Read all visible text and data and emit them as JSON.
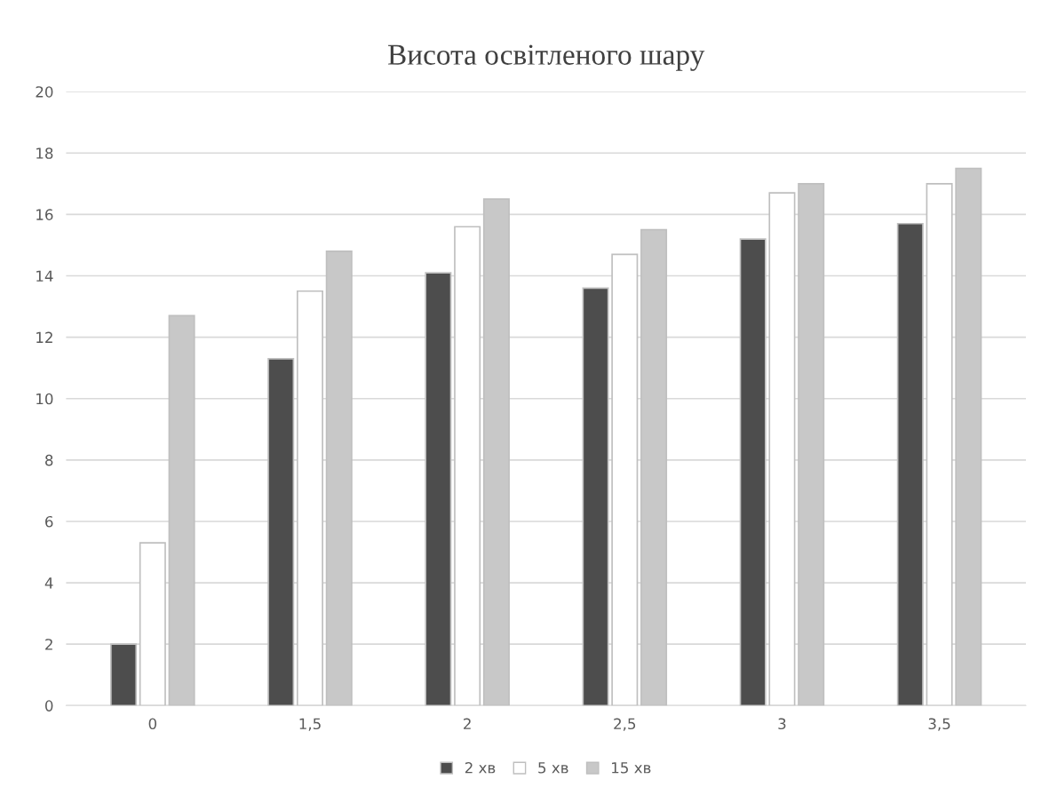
{
  "chart_data": {
    "type": "bar",
    "title": "Висота освітленого шару",
    "categories": [
      "0",
      "1,5",
      "2",
      "2,5",
      "3",
      "3,5"
    ],
    "series": [
      {
        "name": "2 хв",
        "color": "#4d4d4d",
        "values": [
          2.0,
          11.3,
          14.1,
          13.6,
          15.2,
          15.7
        ]
      },
      {
        "name": "5 хв",
        "color": "#ffffff",
        "values": [
          5.3,
          13.5,
          15.6,
          14.7,
          16.7,
          17.0
        ]
      },
      {
        "name": "15 хв",
        "color": "#c8c8c8",
        "values": [
          12.7,
          14.8,
          16.5,
          15.5,
          17.0,
          17.5
        ]
      }
    ],
    "ylim": [
      0,
      20
    ],
    "yticks": [
      0,
      2,
      4,
      6,
      8,
      10,
      12,
      14,
      16,
      18,
      20
    ],
    "grid": "y",
    "legend": "bottom"
  }
}
